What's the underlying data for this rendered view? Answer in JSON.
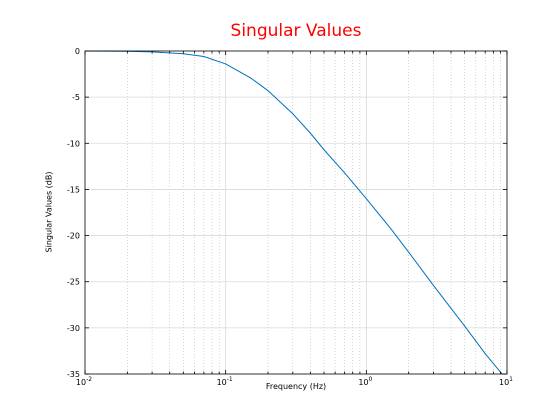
{
  "chart_data": {
    "type": "line",
    "title": "Singular Values",
    "xlabel": "Frequency (Hz)",
    "ylabel": "Singular Values (dB)",
    "xscale": "log",
    "xlim": [
      0.01,
      10
    ],
    "ylim": [
      -35,
      0
    ],
    "grid": true,
    "line_color": "#0072bd",
    "title_color": "#ff0000",
    "x_ticks": [
      {
        "value": 0.01,
        "base": "10",
        "exp": "-2"
      },
      {
        "value": 0.1,
        "base": "10",
        "exp": "-1"
      },
      {
        "value": 1,
        "base": "10",
        "exp": "0"
      },
      {
        "value": 10,
        "base": "10",
        "exp": "1"
      }
    ],
    "y_ticks": [
      {
        "value": 0,
        "label": "0"
      },
      {
        "value": -5,
        "label": "-5"
      },
      {
        "value": -10,
        "label": "-10"
      },
      {
        "value": -15,
        "label": "-15"
      },
      {
        "value": -20,
        "label": "-20"
      },
      {
        "value": -25,
        "label": "-25"
      },
      {
        "value": -30,
        "label": "-30"
      },
      {
        "value": -35,
        "label": "-35"
      }
    ],
    "series": [
      {
        "x": [
          0.01,
          0.02,
          0.03,
          0.05,
          0.07,
          0.1,
          0.15,
          0.2,
          0.3,
          0.4,
          0.5,
          0.7,
          1,
          1.5,
          2,
          3,
          5,
          7,
          9,
          10
        ],
        "y": [
          0,
          -0.03,
          -0.1,
          -0.3,
          -0.6,
          -1.4,
          -2.9,
          -4.3,
          -6.8,
          -8.9,
          -10.7,
          -13.2,
          -16.0,
          -19.3,
          -21.8,
          -25.4,
          -29.8,
          -32.8,
          -34.8,
          -35.6
        ]
      }
    ]
  }
}
